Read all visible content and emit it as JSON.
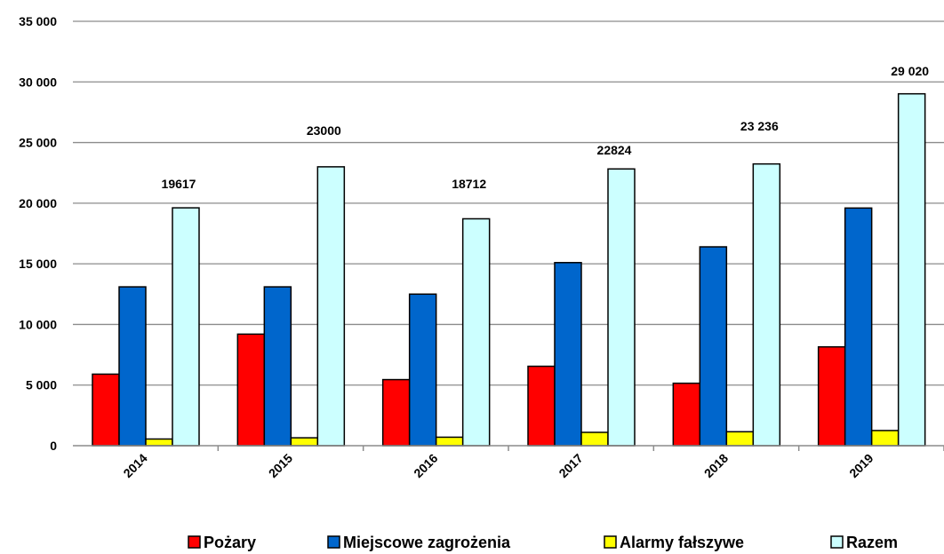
{
  "chart_data": {
    "type": "bar",
    "title": "",
    "xlabel": "",
    "ylabel": "",
    "ylim": [
      0,
      35000
    ],
    "yticks": [
      0,
      5000,
      10000,
      15000,
      20000,
      25000,
      30000,
      35000
    ],
    "ytick_labels": [
      "0",
      "5 000",
      "10 000",
      "15 000",
      "20 000",
      "25 000",
      "30 000",
      "35 000"
    ],
    "grid": true,
    "legend_position": "bottom",
    "categories": [
      "2014",
      "2015",
      "2016",
      "2017",
      "2018",
      "2019"
    ],
    "series": [
      {
        "name": "Pożary",
        "color": "#ff0000",
        "values": [
          5900,
          9200,
          5450,
          6550,
          5150,
          8150
        ]
      },
      {
        "name": "Miejscowe zagrożenia",
        "color": "#0066cc",
        "values": [
          13100,
          13100,
          12500,
          15100,
          16400,
          19600
        ]
      },
      {
        "name": "Alarmy fałszywe",
        "color": "#ffff00",
        "values": [
          550,
          650,
          700,
          1100,
          1150,
          1250
        ]
      },
      {
        "name": "Razem",
        "color": "#ccffff",
        "values": [
          19617,
          23000,
          18712,
          22824,
          23236,
          29020
        ]
      }
    ],
    "data_labels": {
      "series": "Razem",
      "labels": [
        "19617",
        "23000",
        "18712",
        "22824",
        "23 236",
        "29 020"
      ]
    }
  }
}
